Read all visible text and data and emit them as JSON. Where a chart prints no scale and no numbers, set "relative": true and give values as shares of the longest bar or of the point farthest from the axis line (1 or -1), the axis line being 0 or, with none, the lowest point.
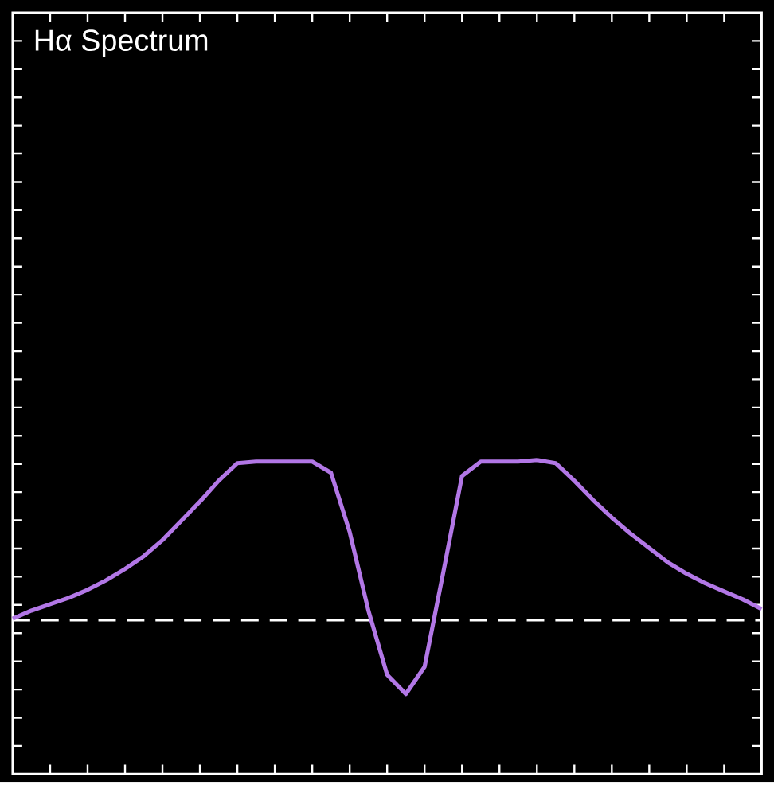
{
  "chart_data": {
    "type": "line",
    "title": "Hα Spectrum",
    "relative": true,
    "categories": [
      null,
      null,
      null,
      null,
      null,
      null,
      null,
      null,
      null,
      null,
      null,
      null,
      null,
      null,
      null,
      null,
      null,
      null,
      null,
      null,
      null,
      null,
      null,
      null,
      null,
      null,
      null,
      null,
      null,
      null,
      null,
      null,
      null,
      null,
      null,
      null,
      null,
      null,
      null,
      null,
      null
    ],
    "series": [
      {
        "color": "#b277e6",
        "values": [
          0.01,
          0.06,
          0.1,
          0.14,
          0.19,
          0.25,
          0.32,
          0.4,
          0.5,
          0.62,
          0.74,
          0.87,
          0.98,
          0.99,
          0.99,
          0.99,
          0.99,
          0.92,
          0.55,
          0.06,
          -0.34,
          -0.46,
          -0.29,
          0.3,
          0.9,
          0.99,
          0.99,
          0.99,
          1,
          0.98,
          0.87,
          0.75,
          0.64,
          0.54,
          0.45,
          0.36,
          0.29,
          0.23,
          0.18,
          0.13,
          0.07
        ]
      }
    ],
    "ref_lines": [
      {
        "axis": "y",
        "value": 0,
        "color": "#ffffff",
        "line_style": "dashed"
      }
    ],
    "grid": false,
    "marker": "none",
    "line_style": "solid"
  }
}
